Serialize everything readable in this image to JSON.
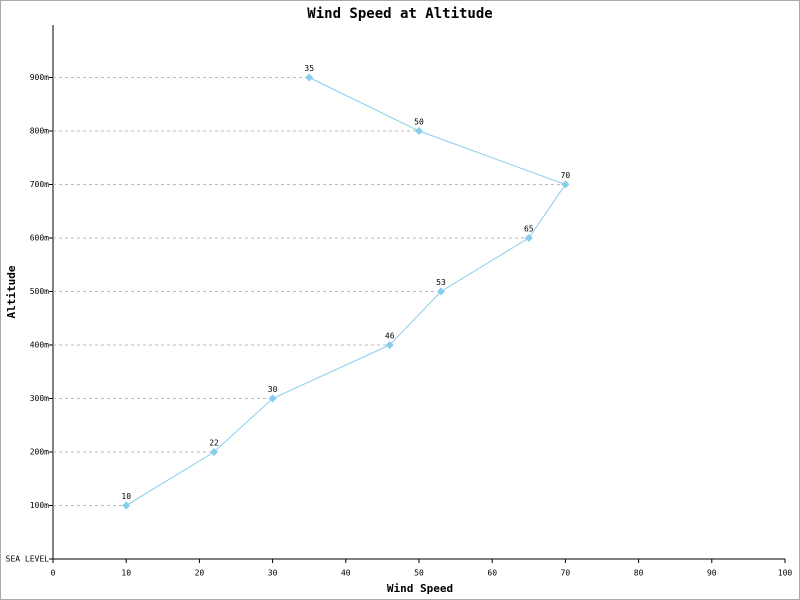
{
  "chart_data": {
    "type": "line",
    "title": "Wind Speed at Altitude",
    "x_label": "Wind Speed",
    "y_label": "Altitude",
    "categories": [
      "SEA LEVEL",
      "100m",
      "200m",
      "300m",
      "400m",
      "500m",
      "600m",
      "700m",
      "800m",
      "900m"
    ],
    "series": [
      {
        "name": "Wind Speed",
        "color": "#87ceeb",
        "values": [
          null,
          10,
          22,
          30,
          46,
          53,
          65,
          70,
          50,
          35
        ]
      }
    ],
    "xlim": [
      0,
      100
    ],
    "xticks": [
      0,
      10,
      20,
      30,
      40,
      50,
      60,
      70,
      80,
      90,
      100
    ],
    "grid": true
  }
}
